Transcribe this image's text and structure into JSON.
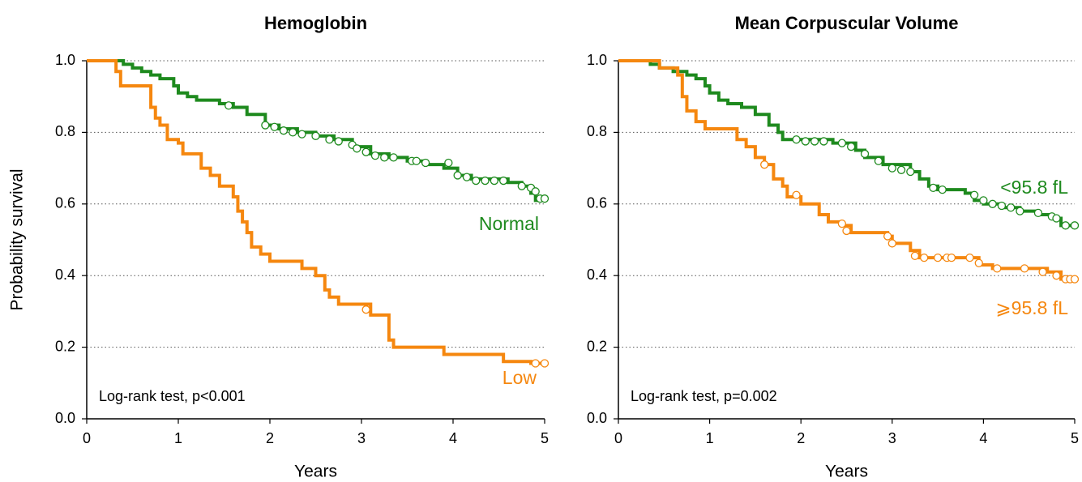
{
  "chart_data": [
    {
      "type": "step",
      "title": "Hemoglobin",
      "x_label": "Years",
      "y_label": "Probability survival",
      "annotation": "Log-rank test, p<0.001",
      "xlim": [
        0,
        5
      ],
      "ylim": [
        0,
        1
      ],
      "xticks": [
        0,
        1,
        2,
        3,
        4,
        5
      ],
      "yticks": [
        {
          "value": 0,
          "label": "0.0"
        },
        0.2,
        0.4,
        0.6,
        0.8,
        {
          "value": 1,
          "label": "1.0"
        }
      ],
      "grid": true,
      "series": [
        {
          "name": "Normal",
          "color": "#1e8a1e",
          "x": [
            0,
            0.35,
            0.4,
            0.5,
            0.6,
            0.7,
            0.8,
            0.95,
            1.0,
            1.1,
            1.2,
            1.45,
            1.6,
            1.75,
            1.95,
            2.1,
            2.3,
            2.5,
            2.7,
            2.9,
            3.1,
            3.3,
            3.5,
            3.7,
            3.9,
            4.05,
            4.2,
            4.6,
            4.75,
            4.85,
            4.9,
            5.0
          ],
          "values": [
            1.0,
            1.0,
            0.99,
            0.98,
            0.97,
            0.96,
            0.95,
            0.93,
            0.91,
            0.9,
            0.89,
            0.88,
            0.87,
            0.85,
            0.82,
            0.81,
            0.8,
            0.79,
            0.78,
            0.76,
            0.74,
            0.73,
            0.72,
            0.71,
            0.7,
            0.68,
            0.67,
            0.66,
            0.65,
            0.63,
            0.61,
            0.61
          ],
          "censor_x": [
            1.55,
            1.95,
            2.05,
            2.15,
            2.25,
            2.35,
            2.5,
            2.65,
            2.75,
            2.9,
            2.95,
            3.05,
            3.15,
            3.25,
            3.35,
            3.55,
            3.6,
            3.7,
            3.95,
            4.05,
            4.15,
            4.25,
            4.35,
            4.45,
            4.55,
            4.75,
            4.85,
            4.9,
            4.95,
            5.0
          ],
          "censor_y": [
            0.875,
            0.82,
            0.815,
            0.805,
            0.8,
            0.795,
            0.79,
            0.78,
            0.775,
            0.765,
            0.755,
            0.745,
            0.735,
            0.73,
            0.73,
            0.72,
            0.72,
            0.715,
            0.715,
            0.68,
            0.675,
            0.665,
            0.665,
            0.665,
            0.665,
            0.65,
            0.645,
            0.635,
            0.615,
            0.615
          ]
        },
        {
          "name": "Low",
          "color": "#f5870f",
          "x": [
            0,
            0.3,
            0.32,
            0.37,
            0.65,
            0.7,
            0.75,
            0.8,
            0.88,
            1.0,
            1.05,
            1.2,
            1.25,
            1.35,
            1.45,
            1.6,
            1.65,
            1.7,
            1.75,
            1.8,
            1.9,
            2.0,
            2.3,
            2.35,
            2.5,
            2.6,
            2.65,
            2.75,
            3.05,
            3.1,
            3.25,
            3.3,
            3.35,
            3.85,
            3.9,
            4.5,
            4.55,
            4.8,
            4.85,
            5.0
          ],
          "values": [
            1.0,
            1.0,
            0.97,
            0.93,
            0.93,
            0.87,
            0.84,
            0.82,
            0.78,
            0.77,
            0.74,
            0.74,
            0.7,
            0.68,
            0.65,
            0.62,
            0.58,
            0.55,
            0.52,
            0.48,
            0.46,
            0.44,
            0.44,
            0.42,
            0.4,
            0.36,
            0.34,
            0.32,
            0.32,
            0.29,
            0.29,
            0.22,
            0.2,
            0.2,
            0.18,
            0.18,
            0.16,
            0.16,
            0.155,
            0.155
          ],
          "censor_x": [
            3.05,
            4.9,
            5.0
          ],
          "censor_y": [
            0.305,
            0.155,
            0.155
          ]
        }
      ]
    },
    {
      "type": "step",
      "title": "Mean Corpuscular Volume",
      "x_label": "Years",
      "annotation": "Log-rank test, p=0.002",
      "xlim": [
        0,
        5
      ],
      "ylim": [
        0,
        1
      ],
      "xticks": [
        0,
        1,
        2,
        3,
        4,
        5
      ],
      "yticks": [
        {
          "value": 0,
          "label": "0.0"
        },
        0.2,
        0.4,
        0.6,
        0.8,
        {
          "value": 1,
          "label": "1.0"
        }
      ],
      "grid": true,
      "series": [
        {
          "name": "<95.8 fL",
          "color": "#1e8a1e",
          "x": [
            0,
            0.3,
            0.35,
            0.45,
            0.6,
            0.75,
            0.85,
            0.95,
            1.0,
            1.1,
            1.2,
            1.35,
            1.5,
            1.65,
            1.75,
            1.8,
            2.35,
            2.6,
            2.7,
            2.9,
            3.2,
            3.3,
            3.4,
            3.5,
            3.8,
            3.9,
            4.0,
            4.2,
            4.4,
            4.6,
            4.75,
            4.85,
            5.0
          ],
          "values": [
            1.0,
            1.0,
            0.99,
            0.98,
            0.97,
            0.96,
            0.95,
            0.93,
            0.91,
            0.89,
            0.88,
            0.87,
            0.85,
            0.82,
            0.8,
            0.78,
            0.77,
            0.75,
            0.73,
            0.71,
            0.69,
            0.67,
            0.65,
            0.64,
            0.63,
            0.61,
            0.6,
            0.59,
            0.58,
            0.57,
            0.56,
            0.54,
            0.54
          ],
          "censor_x": [
            1.95,
            2.05,
            2.15,
            2.25,
            2.45,
            2.55,
            2.7,
            2.85,
            3.0,
            3.1,
            3.2,
            3.45,
            3.55,
            3.9,
            4.0,
            4.1,
            4.2,
            4.3,
            4.4,
            4.6,
            4.75,
            4.8,
            4.9,
            5.0
          ],
          "censor_y": [
            0.78,
            0.775,
            0.775,
            0.775,
            0.77,
            0.76,
            0.74,
            0.72,
            0.7,
            0.695,
            0.69,
            0.645,
            0.64,
            0.625,
            0.61,
            0.6,
            0.595,
            0.59,
            0.58,
            0.575,
            0.565,
            0.56,
            0.54,
            0.54
          ]
        },
        {
          "name": "⩾95.8 fL",
          "color": "#f5870f",
          "x": [
            0,
            0.4,
            0.45,
            0.6,
            0.65,
            0.7,
            0.75,
            0.85,
            0.95,
            1.25,
            1.3,
            1.4,
            1.5,
            1.6,
            1.7,
            1.8,
            1.85,
            2.0,
            2.2,
            2.3,
            2.45,
            2.55,
            2.95,
            3.0,
            3.2,
            3.3,
            3.85,
            3.95,
            4.1,
            4.7,
            4.85,
            5.0
          ],
          "values": [
            1.0,
            1.0,
            0.98,
            0.98,
            0.96,
            0.9,
            0.86,
            0.83,
            0.81,
            0.81,
            0.78,
            0.76,
            0.73,
            0.71,
            0.67,
            0.65,
            0.62,
            0.6,
            0.57,
            0.55,
            0.54,
            0.52,
            0.51,
            0.49,
            0.47,
            0.45,
            0.45,
            0.43,
            0.42,
            0.41,
            0.39,
            0.39
          ],
          "censor_x": [
            1.6,
            1.95,
            2.45,
            2.5,
            2.95,
            3.0,
            3.25,
            3.35,
            3.5,
            3.6,
            3.65,
            3.85,
            3.95,
            4.15,
            4.45,
            4.65,
            4.8,
            4.9,
            4.95,
            5.0
          ],
          "censor_y": [
            0.71,
            0.625,
            0.545,
            0.525,
            0.51,
            0.49,
            0.455,
            0.45,
            0.45,
            0.45,
            0.45,
            0.45,
            0.435,
            0.42,
            0.42,
            0.41,
            0.4,
            0.39,
            0.39,
            0.39
          ]
        }
      ]
    }
  ]
}
